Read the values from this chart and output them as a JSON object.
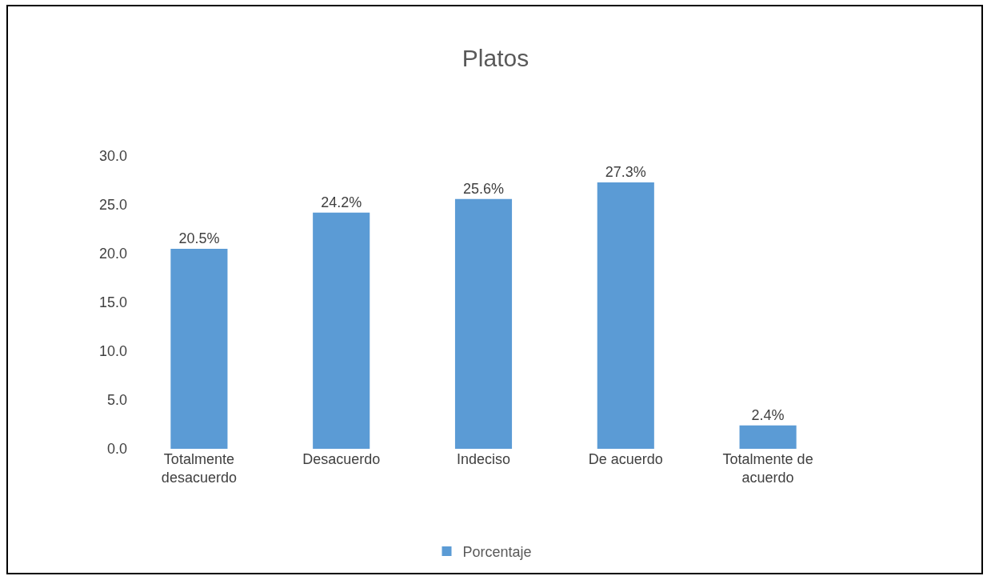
{
  "chart_data": {
    "type": "bar",
    "title": "Platos",
    "categories": [
      "Totalmente desacuerdo",
      "Desacuerdo",
      "Indeciso",
      "De acuerdo",
      "Totalmente de acuerdo"
    ],
    "series": [
      {
        "name": "Porcentaje",
        "color": "#5b9bd5",
        "values": [
          20.5,
          24.2,
          25.6,
          27.3,
          2.4
        ],
        "value_labels": [
          "20.5%",
          "24.2%",
          "25.6%",
          "27.3%",
          "2.4%"
        ]
      }
    ],
    "ylim": [
      0,
      30
    ],
    "yticks": [
      {
        "value": 0,
        "label": "0.0"
      },
      {
        "value": 5,
        "label": "5.0"
      },
      {
        "value": 10,
        "label": "10.0"
      },
      {
        "value": 15,
        "label": "15.0"
      },
      {
        "value": 20,
        "label": "20.0"
      },
      {
        "value": 25,
        "label": "25.0"
      },
      {
        "value": 30,
        "label": "30.0"
      }
    ],
    "grid": false,
    "legend": "bottom"
  }
}
